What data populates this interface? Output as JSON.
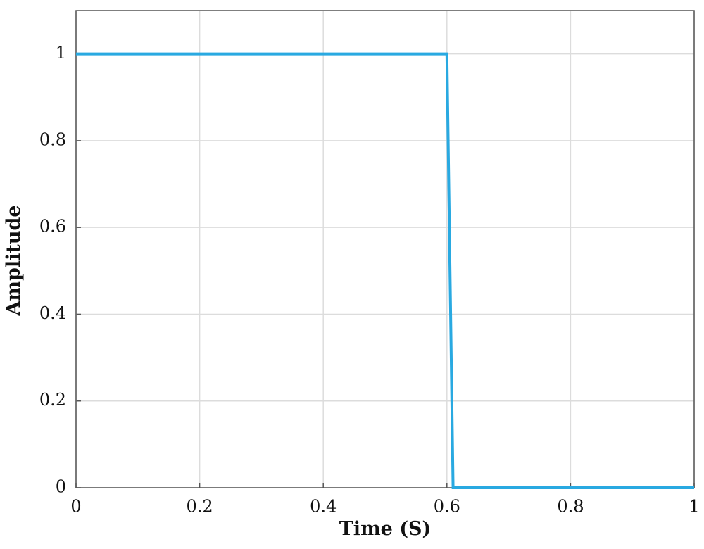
{
  "chart_data": {
    "type": "line",
    "x_label": "Time (S)",
    "y_label": "Amplitude",
    "x": [
      0,
      0.6,
      0.61,
      1
    ],
    "series": [
      {
        "color": "#29a9e1",
        "values": [
          1,
          1,
          0,
          0
        ]
      }
    ],
    "xlim": [
      0,
      1
    ],
    "ylim": [
      0,
      1.1
    ],
    "xticks": [
      0,
      0.2,
      0.4,
      0.6,
      0.8,
      1
    ],
    "yticks": [
      0,
      0.2,
      0.4,
      0.6,
      0.8,
      1
    ],
    "grid": true
  }
}
